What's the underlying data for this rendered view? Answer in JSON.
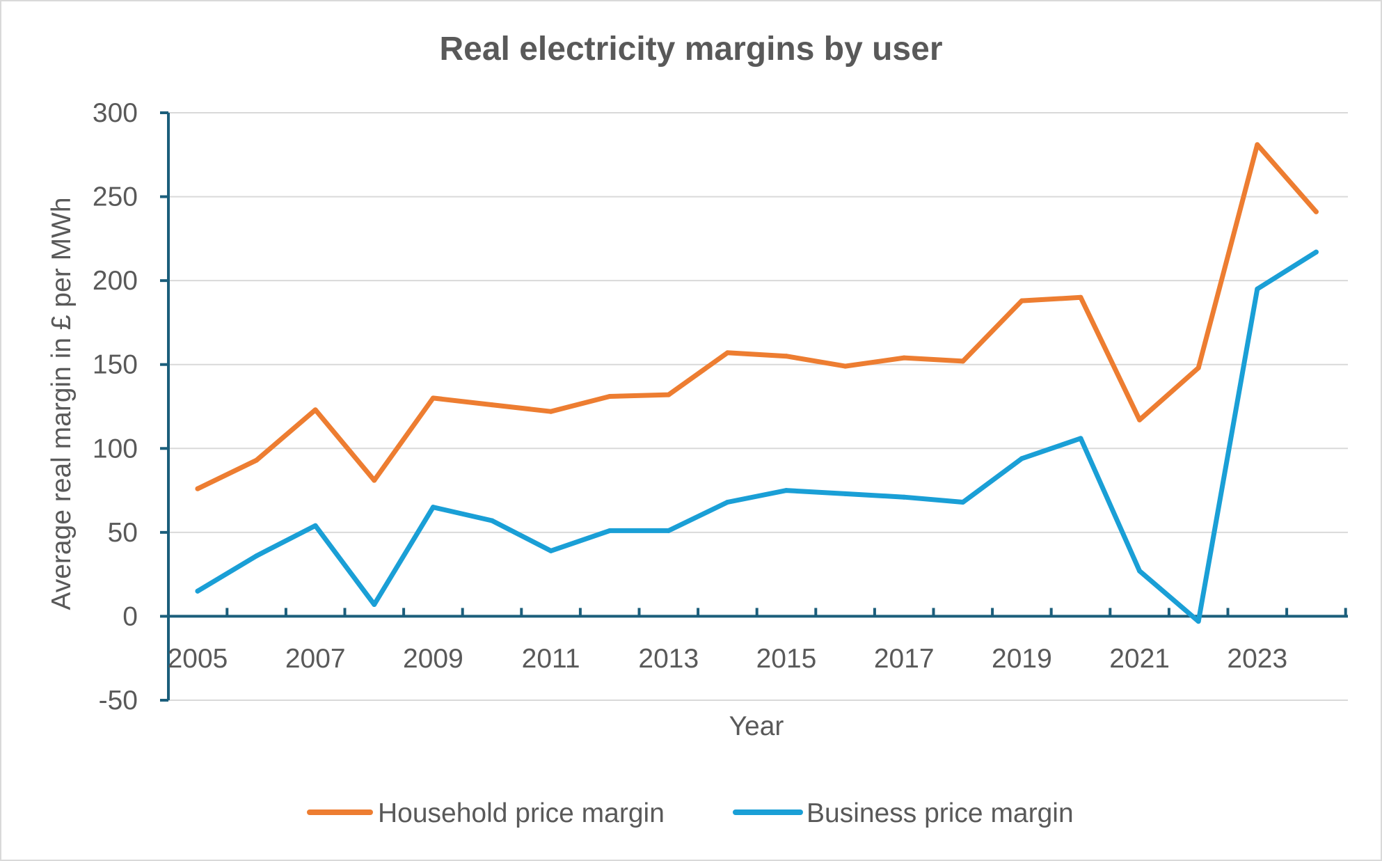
{
  "chart_data": {
    "type": "line",
    "title": "Real electricity margins by user",
    "xlabel": "Year",
    "ylabel": "Average real margin in £ per MWh",
    "x": [
      2005,
      2006,
      2007,
      2008,
      2009,
      2010,
      2011,
      2012,
      2013,
      2014,
      2015,
      2016,
      2017,
      2018,
      2019,
      2020,
      2021,
      2022,
      2023,
      2024
    ],
    "x_tick_labels": [
      "2005",
      "2007",
      "2009",
      "2011",
      "2013",
      "2015",
      "2017",
      "2019",
      "2021",
      "2023"
    ],
    "y_tick_labels": [
      "300",
      "250",
      "200",
      "150",
      "100",
      "50",
      "0",
      "-50"
    ],
    "ylim": [
      -50,
      300
    ],
    "grid": true,
    "legend_position": "bottom",
    "series": [
      {
        "name": "Household price margin",
        "color": "#ed7d31",
        "values": [
          76,
          93,
          123,
          81,
          130,
          126,
          122,
          131,
          132,
          157,
          155,
          149,
          154,
          152,
          188,
          190,
          117,
          148,
          281,
          241
        ]
      },
      {
        "name": "Business price margin",
        "color": "#1a9fd6",
        "values": [
          15,
          36,
          54,
          7,
          65,
          57,
          39,
          51,
          51,
          68,
          75,
          73,
          71,
          68,
          94,
          106,
          27,
          -3,
          195,
          217
        ]
      }
    ]
  }
}
